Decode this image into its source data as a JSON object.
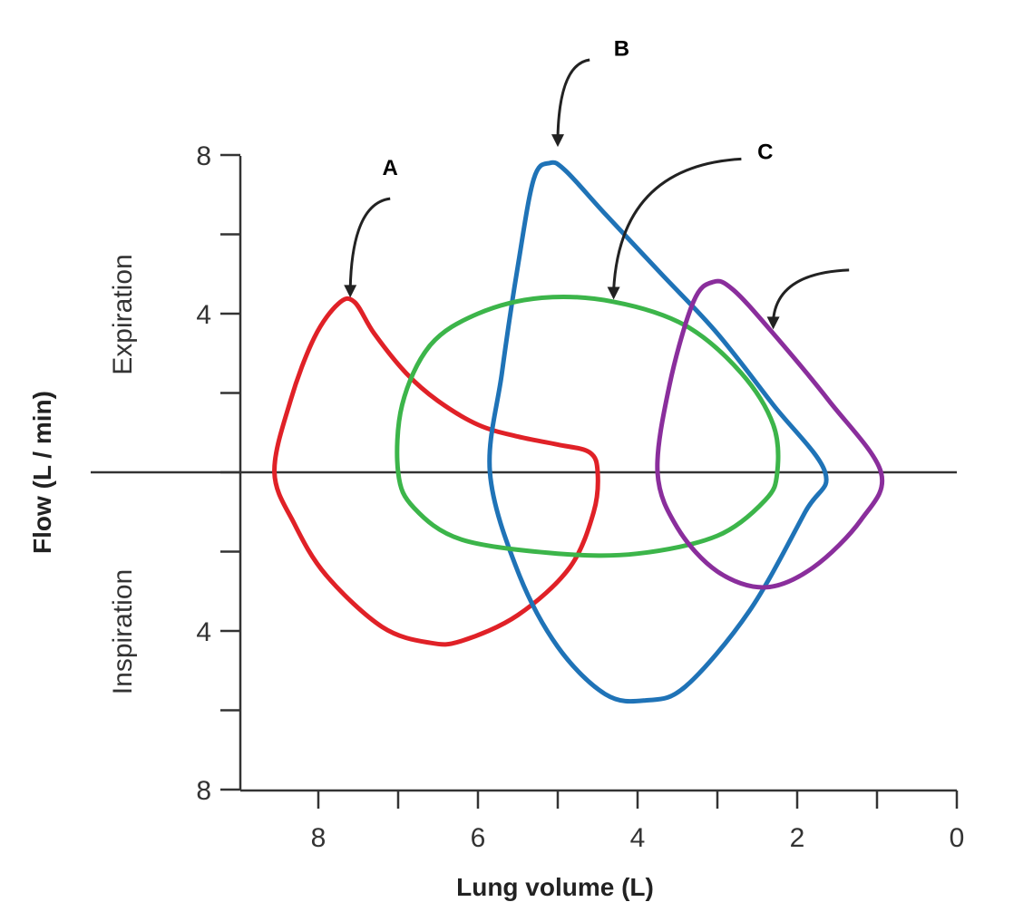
{
  "chart_data": {
    "type": "line",
    "xlabel": "Lung volume (L)",
    "ylabel": "Flow (L / min)",
    "upper_label": "Expiration",
    "lower_label": "Inspiration",
    "x_reversed": true,
    "xlim": [
      0,
      9
    ],
    "ylim": [
      -8,
      8
    ],
    "x_ticks": [
      8,
      7,
      6,
      5,
      4,
      3,
      2,
      1,
      0
    ],
    "x_tick_labels": [
      "8",
      "",
      "6",
      "",
      "4",
      "",
      "2",
      "",
      "0"
    ],
    "y_ticks": [
      8,
      6,
      4,
      2,
      0,
      -2,
      -4,
      -6,
      -8
    ],
    "y_tick_labels": [
      "8",
      "",
      "4",
      "",
      "",
      "",
      "4",
      "",
      "8"
    ],
    "series": [
      {
        "label": "A",
        "color": "#e02127",
        "points": [
          [
            8.55,
            0
          ],
          [
            8.35,
            1.8
          ],
          [
            8.05,
            3.4
          ],
          [
            7.75,
            4.25
          ],
          [
            7.55,
            4.3
          ],
          [
            7.3,
            3.5
          ],
          [
            6.9,
            2.5
          ],
          [
            6.5,
            1.8
          ],
          [
            6.0,
            1.2
          ],
          [
            5.5,
            0.9
          ],
          [
            5.0,
            0.7
          ],
          [
            4.6,
            0.5
          ],
          [
            4.5,
            0
          ],
          [
            4.55,
            -1.0
          ],
          [
            4.85,
            -2.4
          ],
          [
            5.5,
            -3.6
          ],
          [
            6.2,
            -4.25
          ],
          [
            6.6,
            -4.3
          ],
          [
            7.2,
            -3.9
          ],
          [
            7.9,
            -2.6
          ],
          [
            8.3,
            -1.3
          ],
          [
            8.55,
            0
          ]
        ]
      },
      {
        "label": "B",
        "color": "#1f73b7",
        "points": [
          [
            5.85,
            0
          ],
          [
            5.7,
            2.5
          ],
          [
            5.5,
            5.2
          ],
          [
            5.3,
            7.4
          ],
          [
            5.1,
            7.8
          ],
          [
            4.9,
            7.6
          ],
          [
            4.4,
            6.5
          ],
          [
            3.7,
            5.0
          ],
          [
            3.0,
            3.5
          ],
          [
            2.3,
            1.7
          ],
          [
            1.65,
            0
          ],
          [
            1.9,
            -1.0
          ],
          [
            2.6,
            -3.5
          ],
          [
            3.4,
            -5.4
          ],
          [
            3.9,
            -5.75
          ],
          [
            4.4,
            -5.6
          ],
          [
            5.0,
            -4.4
          ],
          [
            5.5,
            -2.5
          ],
          [
            5.85,
            0
          ]
        ]
      },
      {
        "label": "C",
        "color": "#3cb54a",
        "points": [
          [
            7.0,
            0
          ],
          [
            6.95,
            1.7
          ],
          [
            6.6,
            3.2
          ],
          [
            6.0,
            4.0
          ],
          [
            5.2,
            4.4
          ],
          [
            4.3,
            4.3
          ],
          [
            3.4,
            3.7
          ],
          [
            2.7,
            2.5
          ],
          [
            2.3,
            1.2
          ],
          [
            2.25,
            0
          ],
          [
            2.4,
            -0.7
          ],
          [
            3.0,
            -1.6
          ],
          [
            4.0,
            -2.05
          ],
          [
            5.0,
            -2.05
          ],
          [
            6.2,
            -1.7
          ],
          [
            6.8,
            -0.9
          ],
          [
            7.0,
            0
          ]
        ]
      },
      {
        "label": "",
        "color": "#8a2e9c",
        "points": [
          [
            3.75,
            0
          ],
          [
            3.6,
            2.2
          ],
          [
            3.3,
            4.3
          ],
          [
            3.05,
            4.8
          ],
          [
            2.8,
            4.6
          ],
          [
            2.3,
            3.5
          ],
          [
            1.6,
            1.8
          ],
          [
            0.95,
            0
          ],
          [
            1.2,
            -1.2
          ],
          [
            1.8,
            -2.4
          ],
          [
            2.4,
            -2.9
          ],
          [
            3.0,
            -2.5
          ],
          [
            3.5,
            -1.4
          ],
          [
            3.75,
            0
          ]
        ]
      }
    ],
    "annotations": [
      {
        "text": "A",
        "tip": [
          7.6,
          4.45
        ],
        "tail": [
          7.1,
          6.9
        ],
        "text_at": [
          7.1,
          7.5
        ]
      },
      {
        "text": "B",
        "tip": [
          5.0,
          8.25
        ],
        "tail": [
          4.6,
          10.4
        ],
        "text_at": [
          4.2,
          10.5
        ]
      },
      {
        "text": "C",
        "tip": [
          4.3,
          4.4
        ],
        "tail": [
          2.7,
          7.9
        ],
        "text_at": [
          2.4,
          7.9
        ]
      },
      {
        "text": "",
        "tip": [
          2.3,
          3.65
        ],
        "tail": [
          1.35,
          5.1
        ],
        "text_at": [
          1.2,
          5.1
        ]
      }
    ]
  }
}
